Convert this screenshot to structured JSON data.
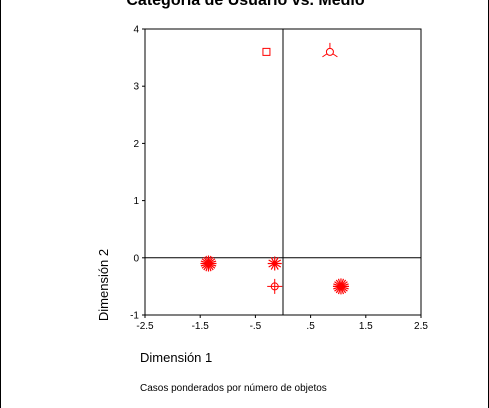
{
  "chart_data": {
    "type": "scatter",
    "title": "Categoría de Usuario vs. Medio",
    "xlabel": "Dimensión 1",
    "ylabel": "Dimensión 2",
    "footnote": "Casos ponderados por número de objetos",
    "xlim": [
      -2.5,
      2.5
    ],
    "ylim": [
      -1,
      4
    ],
    "x_ticks": [
      -2.5,
      -1.5,
      -0.5,
      0.5,
      1.5,
      2.5
    ],
    "x_tick_labels": [
      "-2.5",
      "-1.5",
      "-.5",
      ".5",
      "1.5",
      "2.5"
    ],
    "y_ticks": [
      -1,
      0,
      1,
      2,
      3,
      4
    ],
    "y_tick_labels": [
      "-1",
      "0",
      "1",
      "2",
      "3",
      "4"
    ],
    "reference_lines": {
      "x": 0,
      "y": 0
    },
    "grid": false,
    "legend": "none",
    "marker_color": "#ff0000",
    "points": [
      {
        "x": -0.3,
        "y": 3.6,
        "marker": "square"
      },
      {
        "x": 0.85,
        "y": 3.6,
        "marker": "circle-tri"
      },
      {
        "x": -1.35,
        "y": -0.1,
        "marker": "starburst"
      },
      {
        "x": -0.15,
        "y": -0.1,
        "marker": "starburst-small"
      },
      {
        "x": 1.05,
        "y": -0.5,
        "marker": "starburst"
      },
      {
        "x": -0.15,
        "y": -0.5,
        "marker": "circle-cross"
      }
    ]
  }
}
